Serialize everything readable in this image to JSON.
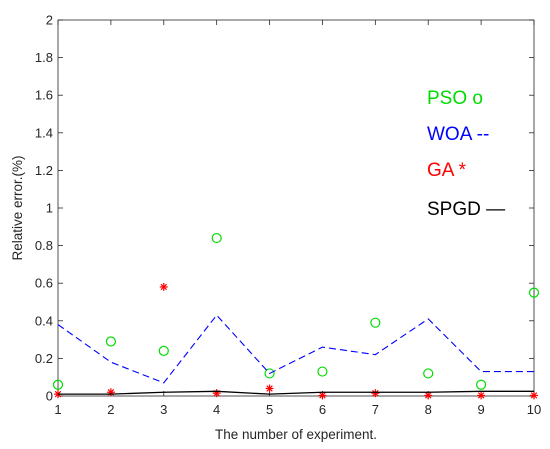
{
  "chart_data": {
    "type": "line",
    "xlabel": "The number of experiment.",
    "ylabel": "Relative error.(%)",
    "xlim": [
      1,
      10
    ],
    "ylim": [
      0,
      2
    ],
    "xticks": [
      "1",
      "2",
      "3",
      "4",
      "5",
      "6",
      "7",
      "8",
      "9",
      "10"
    ],
    "yticks": [
      "0",
      "0.2",
      "0.4",
      "0.6",
      "0.8",
      "1",
      "1.2",
      "1.4",
      "1.6",
      "1.8",
      "2"
    ],
    "grid": false,
    "legend_placement": "right",
    "x": [
      1,
      2,
      3,
      4,
      5,
      6,
      7,
      8,
      9,
      10
    ],
    "series": [
      {
        "name": "PSO o",
        "style": "circle-markers",
        "color": "#00dd00",
        "values": [
          0.06,
          0.29,
          0.24,
          0.84,
          0.12,
          0.13,
          0.39,
          0.12,
          0.06,
          0.55
        ]
      },
      {
        "name": "WOA --",
        "style": "dashed-line",
        "color": "#0000ff",
        "values": [
          0.38,
          0.18,
          0.07,
          0.43,
          0.12,
          0.26,
          0.22,
          0.41,
          0.13,
          0.13
        ]
      },
      {
        "name": "GA *",
        "style": "star-markers",
        "color": "#ff0000",
        "values": [
          0.01,
          0.02,
          0.58,
          0.015,
          0.04,
          0.003,
          0.015,
          0.003,
          0.003,
          0.003
        ]
      },
      {
        "name": "SPGD —",
        "style": "solid-line",
        "color": "#000000",
        "values": [
          0.01,
          0.01,
          0.02,
          0.025,
          0.01,
          0.02,
          0.02,
          0.02,
          0.025,
          0.025
        ]
      }
    ]
  }
}
